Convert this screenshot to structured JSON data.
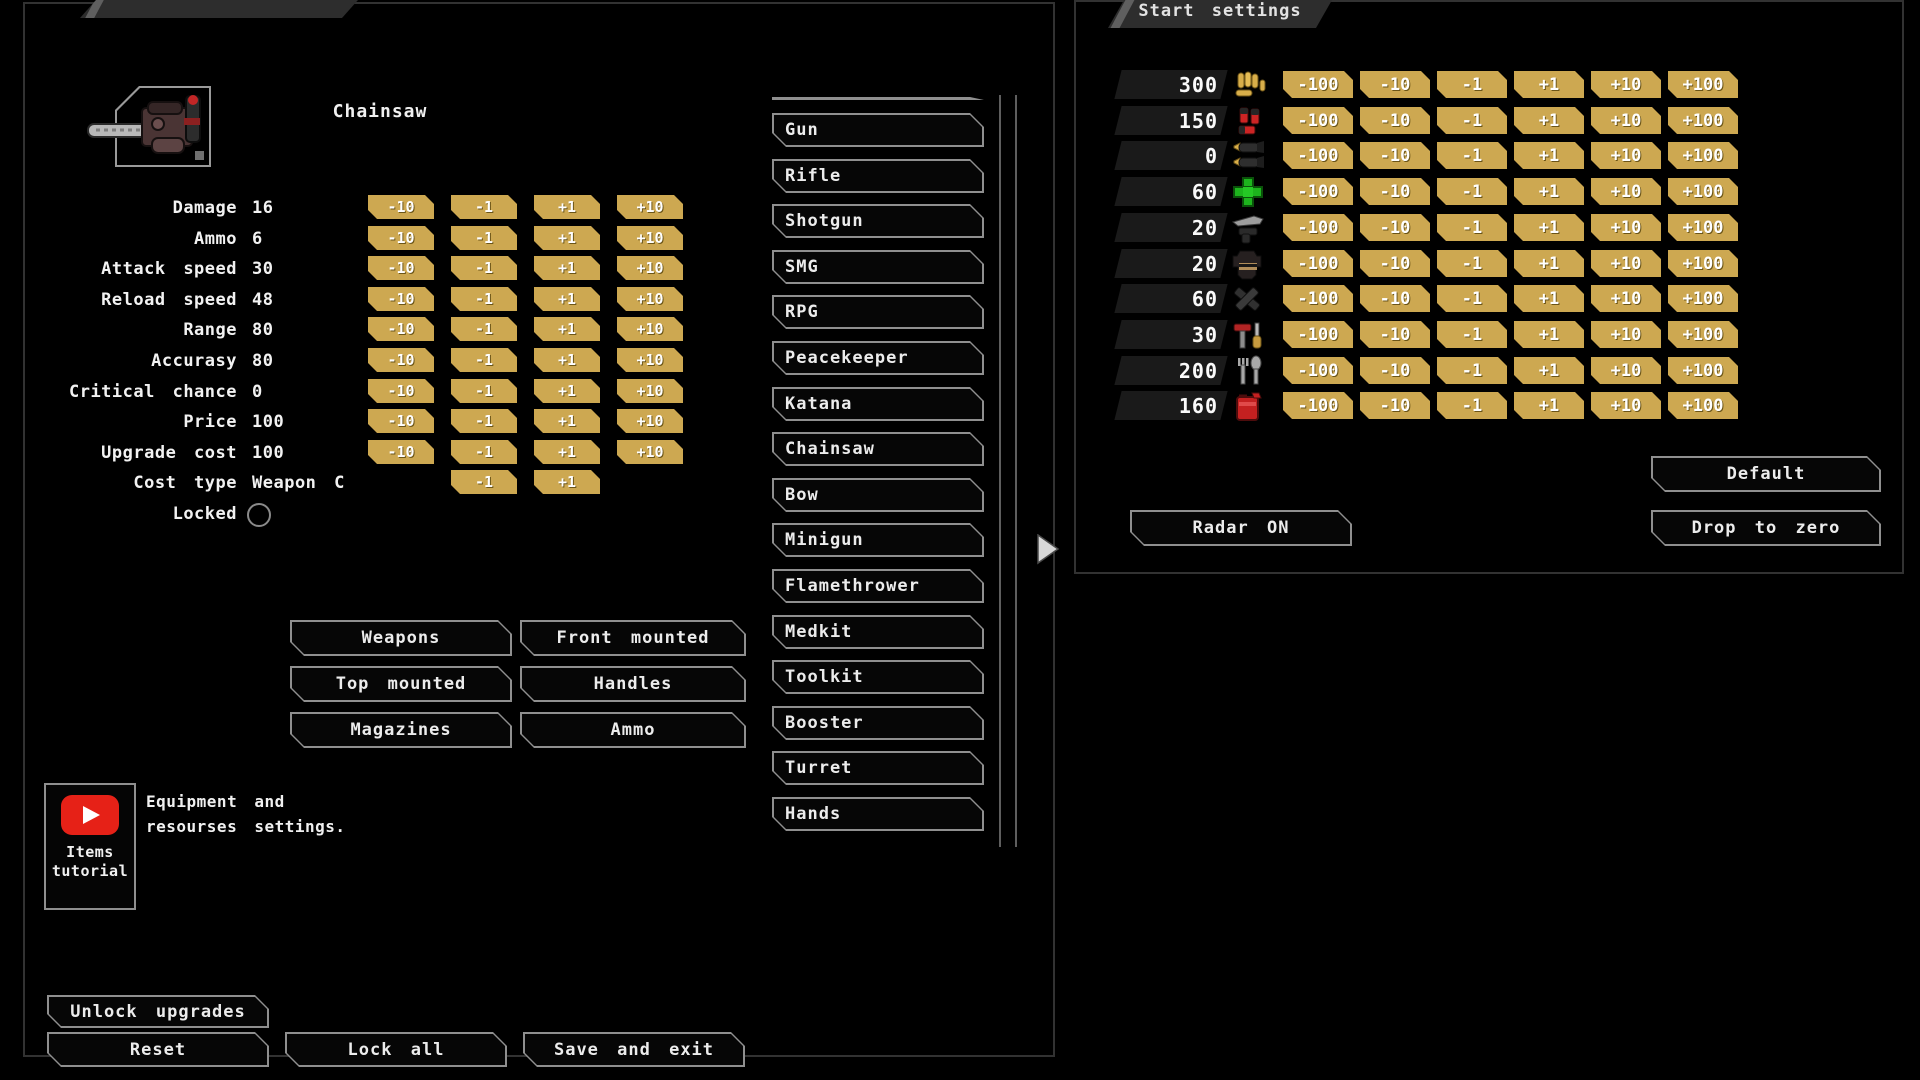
{
  "left_panel": {
    "weapon_title": "Chainsaw",
    "stat_button_labels": [
      "-10",
      "-1",
      "+1",
      "+10"
    ],
    "stats": [
      {
        "label": "Damage",
        "value": "16",
        "controls": "four"
      },
      {
        "label": "Ammo",
        "value": "6",
        "controls": "four"
      },
      {
        "label": "Attack speed",
        "value": "30",
        "controls": "four"
      },
      {
        "label": "Reload speed",
        "value": "48",
        "controls": "four"
      },
      {
        "label": "Range",
        "value": "80",
        "controls": "four"
      },
      {
        "label": "Accurasy",
        "value": "80",
        "controls": "four"
      },
      {
        "label": "Critical chance",
        "value": "0",
        "controls": "four"
      },
      {
        "label": "Price",
        "value": "100",
        "controls": "four"
      },
      {
        "label": "Upgrade cost",
        "value": "100",
        "controls": "four"
      },
      {
        "label": "Cost type",
        "value": "Weapon C",
        "controls": "two"
      },
      {
        "label": "Locked",
        "value": "",
        "controls": "lock"
      }
    ],
    "categories": [
      "Weapons",
      "Front mounted",
      "Top mounted",
      "Handles",
      "Magazines",
      "Ammo"
    ],
    "weapon_list": [
      "Gun",
      "Rifle",
      "Shotgun",
      "SMG",
      "RPG",
      "Peacekeeper",
      "Katana",
      "Chainsaw",
      "Bow",
      "Minigun",
      "Flamethrower",
      "Medkit",
      "Toolkit",
      "Booster",
      "Turret",
      "Hands"
    ],
    "tutorial": {
      "button_label": "Items\ntutorial",
      "caption": "Equipment and\nresourses settings."
    },
    "actions": {
      "unlock": "Unlock upgrades",
      "reset": "Reset",
      "lock_all": "Lock all",
      "save": "Save and exit"
    }
  },
  "right_panel": {
    "title": "Start settings",
    "row_button_labels": [
      "-100",
      "-10",
      "-1",
      "+1",
      "+10",
      "+100"
    ],
    "rows": [
      {
        "value": "300",
        "icon": "bullets-icon"
      },
      {
        "value": "150",
        "icon": "shells-icon"
      },
      {
        "value": "0",
        "icon": "rockets-icon"
      },
      {
        "value": "60",
        "icon": "medkit-cross-icon"
      },
      {
        "value": "20",
        "icon": "weapon-parts-icon"
      },
      {
        "value": "20",
        "icon": "armor-helmet-icon"
      },
      {
        "value": "60",
        "icon": "scrap-icon"
      },
      {
        "value": "30",
        "icon": "tools-icon"
      },
      {
        "value": "200",
        "icon": "food-icon"
      },
      {
        "value": "160",
        "icon": "fuel-icon"
      }
    ],
    "buttons": {
      "default": "Default",
      "radar": "Radar ON",
      "drop": "Drop to zero"
    }
  },
  "colors": {
    "gold": "#cda851",
    "panel_border": "#323232",
    "banner_gray": "#2d2d2d",
    "youtube_red": "#e62117",
    "medkit_green": "#1db41d",
    "shell_red": "#cc2424",
    "fuel_red": "#c42020"
  }
}
